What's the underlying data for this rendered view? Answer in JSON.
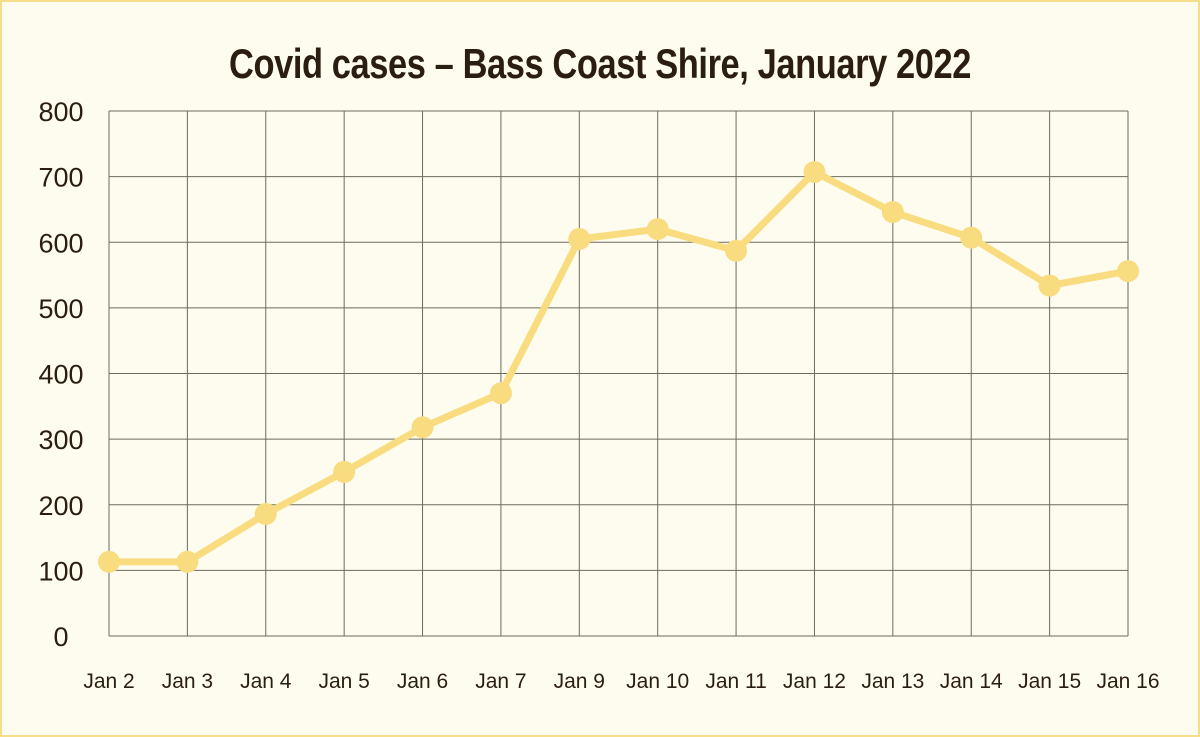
{
  "chart_data": {
    "type": "line",
    "title": "Covid cases – Bass Coast Shire, January 2022",
    "xlabel": "",
    "ylabel": "",
    "categories": [
      "Jan 2",
      "Jan 3",
      "Jan 4",
      "Jan 5",
      "Jan 6",
      "Jan 7",
      "Jan 9",
      "Jan 10",
      "Jan 11",
      "Jan 12",
      "Jan 13",
      "Jan 14",
      "Jan 15",
      "Jan 16"
    ],
    "series": [
      {
        "values": [
          113,
          113,
          186,
          250,
          318,
          370,
          605,
          620,
          587,
          707,
          646,
          607,
          534,
          556
        ]
      }
    ],
    "ylim": [
      0,
      800
    ],
    "yticks": [
      0,
      100,
      200,
      300,
      400,
      500,
      600,
      700,
      800
    ],
    "grid": true,
    "legend": "none",
    "colors": {
      "line": "#f9dc7f",
      "grid": "#6b6b5e",
      "background": "#fefcef",
      "border": "#f7de8b",
      "text": "#2b1d10"
    }
  }
}
